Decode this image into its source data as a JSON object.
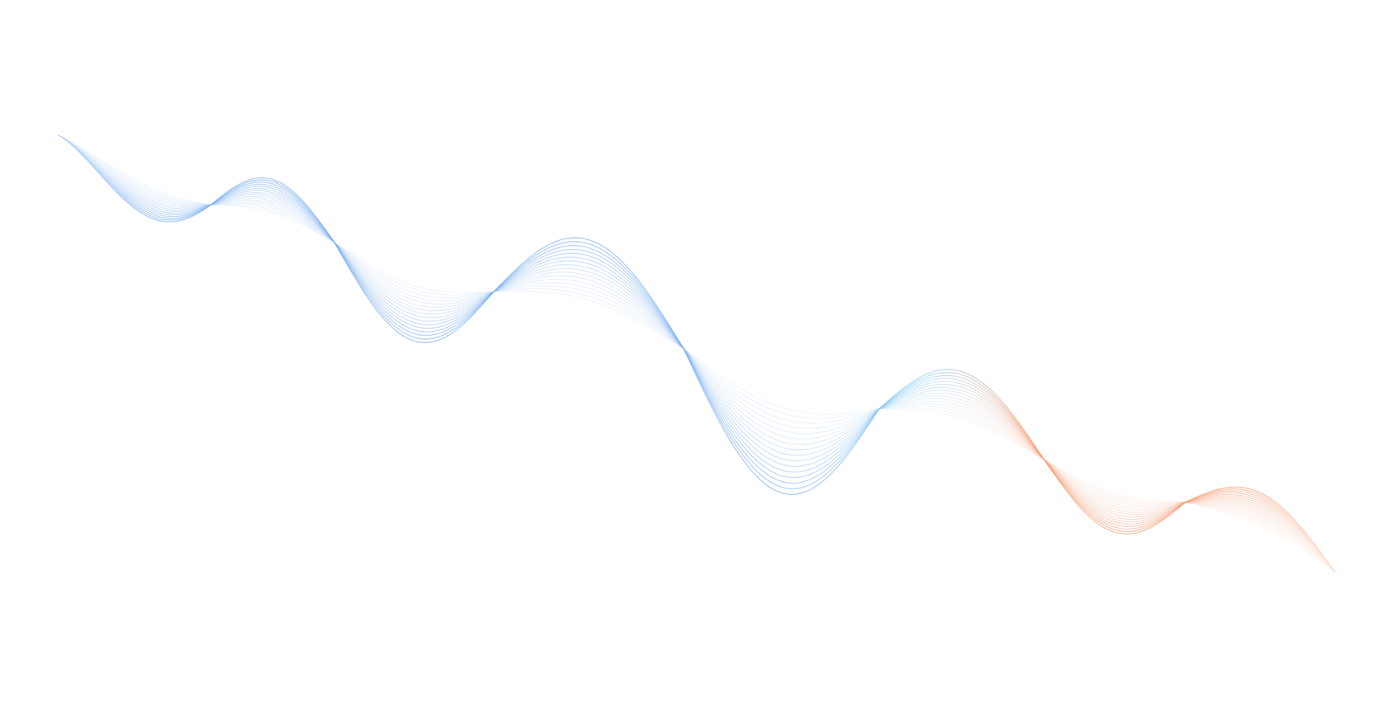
{
  "background_color": "#ffffff",
  "wave": {
    "line_count": 16,
    "colors": {
      "start": "#7fb0f0",
      "middle": "#8fd0f5",
      "end": "#f5a07a"
    }
  }
}
